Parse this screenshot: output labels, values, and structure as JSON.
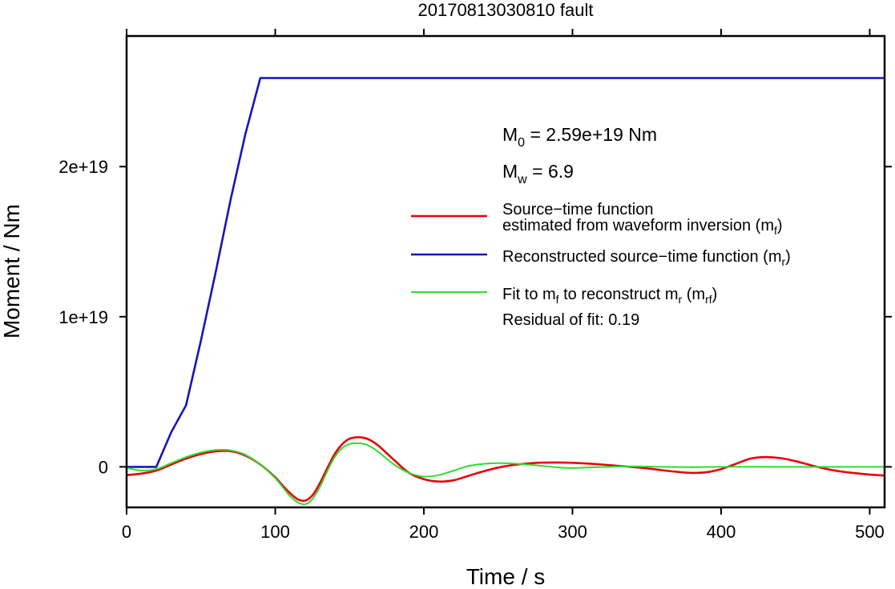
{
  "chart_data": {
    "type": "line",
    "title": "20170813030810 fault",
    "xlabel": "Time / s",
    "ylabel": "Moment / Nm",
    "xlim": [
      0,
      510
    ],
    "ylim": [
      -2.7e+18,
      2.87e+19
    ],
    "x_ticks": [
      {
        "value": 0,
        "label": "0"
      },
      {
        "value": 100,
        "label": "100"
      },
      {
        "value": 200,
        "label": "200"
      },
      {
        "value": 300,
        "label": "300"
      },
      {
        "value": 400,
        "label": "400"
      },
      {
        "value": 500,
        "label": "500"
      }
    ],
    "y_ticks": [
      {
        "value": 0,
        "label": "0"
      },
      {
        "value": 1e+19,
        "label": "1e+19"
      },
      {
        "value": 2e+19,
        "label": "2e+19"
      }
    ],
    "annotations": {
      "m0": {
        "sym": "M",
        "sub": "0",
        "rest": " = 2.59e+19 Nm"
      },
      "mw": {
        "sym": "M",
        "sub": "w",
        "rest": " = 6.9"
      },
      "residual": "Residual of fit: 0.19"
    },
    "legend": {
      "placement": "right",
      "items": [
        {
          "series": "mf",
          "line1": "Source−time function",
          "line2_pre": "estimated from waveform inversion (m",
          "line2_sub": "f",
          "line2_post": ")"
        },
        {
          "series": "mr",
          "line1_pre": "Reconstructed source−time function (m",
          "line1_sub": "r",
          "line1_post": ")"
        },
        {
          "series": "mrf",
          "seg1": "Fit to m",
          "sub1": "f",
          "seg2": " to reconstruct m",
          "sub2": "r",
          "seg3": " (m",
          "sub3": "rf",
          "seg4": ")"
        }
      ]
    },
    "series": [
      {
        "id": "mf",
        "color": "#e8000b",
        "x": [
          0,
          10,
          20,
          30,
          40,
          50,
          60,
          70,
          80,
          90,
          100,
          105,
          110,
          115,
          120,
          125,
          130,
          135,
          140,
          145,
          150,
          155,
          160,
          165,
          170,
          180,
          190,
          200,
          210,
          220,
          230,
          240,
          250,
          260,
          270,
          280,
          290,
          300,
          310,
          320,
          330,
          340,
          350,
          360,
          370,
          380,
          390,
          400,
          410,
          420,
          430,
          440,
          450,
          460,
          470,
          480,
          490,
          500,
          510
        ],
        "y": [
          -5.5e+17,
          -4.5e+17,
          -2.5e+17,
          1.5e+17,
          5.5e+17,
          8.5e+17,
          1.03e+18,
          1.05e+18,
          7.5e+17,
          1.5e+17,
          -7e+17,
          -1.25e+18,
          -1.75e+18,
          -2.15e+18,
          -2.25e+18,
          -1.9e+18,
          -1.1e+18,
          -1e+17,
          8.5e+17,
          1.5e+18,
          1.87e+18,
          1.97e+18,
          1.93e+18,
          1.72e+18,
          1.36e+18,
          4.5e+17,
          -4e+17,
          -8.2e+17,
          -9.8e+17,
          -9e+17,
          -6e+17,
          -3e+17,
          -5e+16,
          1.2e+17,
          2.2e+17,
          2.8e+17,
          2.9e+17,
          2.7e+17,
          2.2e+17,
          1.5e+17,
          7e+16,
          -1e+16,
          -1e+17,
          -2.2e+17,
          -3.3e+17,
          -4e+17,
          -3.6e+17,
          -1.5e+17,
          2e+17,
          5.5e+17,
          6.5e+17,
          5.8e+17,
          3.8e+17,
          1.2e+17,
          -1.2e+17,
          -3e+17,
          -4.2e+17,
          -5.2e+17,
          -5.8e+17
        ]
      },
      {
        "id": "mr",
        "color": "#1515b8",
        "x": [
          0,
          20,
          30,
          40,
          50,
          60,
          70,
          80,
          90,
          510
        ],
        "y": [
          0,
          0,
          2.3e+18,
          4.1e+18,
          8.4e+18,
          1.3e+19,
          1.78e+19,
          2.22e+19,
          2.59e+19,
          2.59e+19
        ]
      },
      {
        "id": "mrf",
        "color": "#2edc2e",
        "x": [
          0,
          10,
          20,
          30,
          40,
          50,
          60,
          70,
          80,
          90,
          100,
          105,
          110,
          115,
          120,
          125,
          130,
          135,
          140,
          145,
          150,
          155,
          160,
          165,
          170,
          180,
          190,
          200,
          210,
          220,
          230,
          240,
          250,
          260,
          270,
          280,
          290,
          300,
          320,
          340,
          360,
          380,
          400,
          420,
          440,
          460,
          480,
          500,
          510
        ],
        "y": [
          -6e+16,
          -2.5e+17,
          -1.5e+17,
          2.5e+17,
          6.5e+17,
          9.5e+17,
          1.12e+18,
          1.1e+18,
          8e+17,
          1.5e+17,
          -7.5e+17,
          -1.35e+18,
          -1.95e+18,
          -2.35e+18,
          -2.5e+18,
          -2.15e+18,
          -1.35e+18,
          -3e+17,
          6.5e+17,
          1.25e+18,
          1.52e+18,
          1.58e+18,
          1.52e+18,
          1.3e+18,
          9.5e+17,
          1.5e+17,
          -4e+17,
          -6.5e+17,
          -5.5e+17,
          -2.5e+17,
          5e+16,
          2e+17,
          2.5e+17,
          2.2e+17,
          1.5e+17,
          6e+16,
          -3e+16,
          -8e+16,
          -1e+16,
          3e+16,
          0,
          -2e+16,
          0,
          1e+16,
          0,
          0,
          0,
          0,
          0
        ]
      }
    ]
  }
}
